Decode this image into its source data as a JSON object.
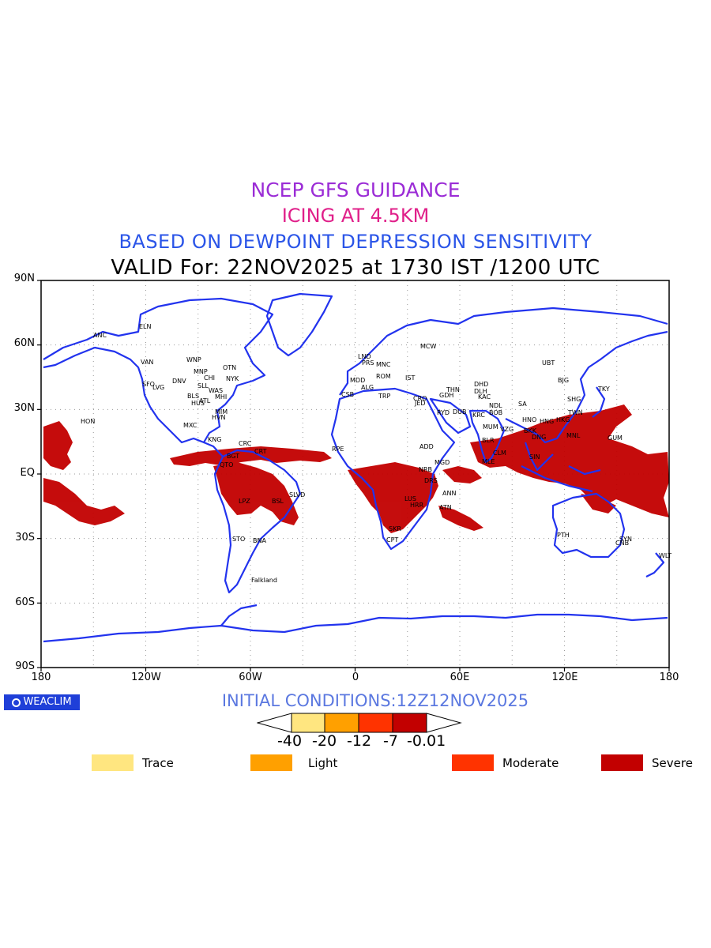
{
  "titles": {
    "line1": "NCEP GFS GUIDANCE",
    "line2": "ICING AT 4.5KM",
    "line3": "BASED ON DEWPOINT DEPRESSION SENSITIVITY",
    "line4": "VALID For: 22NOV2025 at 1730 IST /1200 UTC"
  },
  "colors": {
    "line1": "#9b2cd6",
    "line2": "#e0208a",
    "line3": "#2b55e8",
    "initcond": "#5b78e0",
    "coast": "#2233ee",
    "severe": "#c20000",
    "moderate": "#ff3300",
    "light": "#ffa000",
    "trace": "#ffe680"
  },
  "axes": {
    "lat_labels": [
      "90N",
      "60N",
      "30N",
      "EQ",
      "30S",
      "60S",
      "90S"
    ],
    "lon_labels": [
      "180",
      "120W",
      "60W",
      "0",
      "60E",
      "120E",
      "180"
    ]
  },
  "stations": [
    "ANC",
    "ELN",
    "VAN",
    "WNP",
    "SFO",
    "LVG",
    "DNV",
    "MNP",
    "CHI",
    "NYK",
    "OTN",
    "SLL",
    "WAS",
    "ATL",
    "BLS",
    "HUS",
    "MHI",
    "MIM",
    "HVN",
    "MXC",
    "HON",
    "KNG",
    "CRC",
    "BGT",
    "QTO",
    "CRT",
    "SLVD",
    "LPZ",
    "BSL",
    "STO",
    "BNA",
    "Falkland",
    "MCW",
    "LND",
    "PRS",
    "MNC",
    "ROM",
    "IST",
    "MDD",
    "ALG",
    "CSB",
    "TRP",
    "CRO",
    "RYD",
    "DUB",
    "GDH",
    "THN",
    "JED",
    "RPE",
    "ADD",
    "NRB",
    "MGD",
    "DRS",
    "ANN",
    "LUS",
    "HRR",
    "ATN",
    "CPT",
    "SKR",
    "MLE",
    "DHD",
    "DLH",
    "NDL",
    "KAC",
    "KRC",
    "BOB",
    "MUM",
    "VZG",
    "BLR",
    "CLM",
    "UBT",
    "BJG",
    "TKY",
    "SHG",
    "SA",
    "TWN",
    "HNG",
    "HKG",
    "MNL",
    "HNO",
    "BKK",
    "DNG",
    "GUM",
    "PTH",
    "SYN",
    "CNB",
    "WLT",
    "SIN"
  ],
  "initial_conditions": "INITIAL  CONDITIONS:12Z12NOV2025",
  "colorbar_labels": [
    "-40",
    "-20",
    "-12",
    "-7",
    "-0.01"
  ],
  "legend": [
    {
      "label": "Trace",
      "color": "#ffe680"
    },
    {
      "label": "Light",
      "color": "#ffa000"
    },
    {
      "label": "Moderate",
      "color": "#ff3300"
    },
    {
      "label": "Severe",
      "color": "#c20000"
    }
  ],
  "brand": "WEACLIM"
}
